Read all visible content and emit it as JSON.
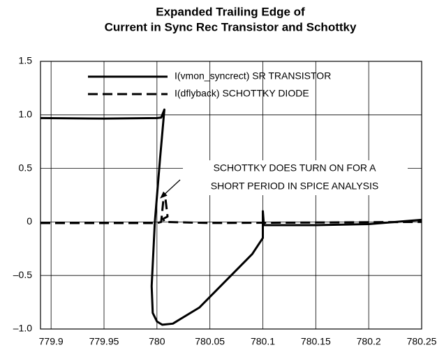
{
  "chart_data": {
    "type": "line",
    "title": [
      "Expanded Trailing Edge of",
      "Current in Sync Rec Transistor and Schottky"
    ],
    "annotation": [
      "SCHOTTKY DOES TURN ON FOR A",
      "SHORT PERIOD IN SPICE ANALYSIS"
    ],
    "xlim": [
      779.89,
      780.25
    ],
    "xticks": [
      779.9,
      779.95,
      780,
      780.05,
      780.1,
      780.15,
      780.2,
      780.25
    ],
    "ylim": [
      -1,
      1.5
    ],
    "yticks": [
      1.5,
      {
        "value": 1,
        "label": "1.0"
      },
      0.5,
      0,
      {
        "value": -0.5,
        "label": "–0.5"
      },
      {
        "value": -1,
        "label": "–1.0"
      }
    ],
    "grid": true,
    "legend": "top",
    "series": [
      {
        "name": "I(vmon_syncrect) SR TRANSISTOR",
        "color": "#000000",
        "dash": "solid",
        "x": [
          779.89,
          779.95,
          780.0,
          780.004,
          780.007,
          780.003,
          779.998,
          779.995,
          779.996,
          780.0,
          780.005,
          780.015,
          780.04,
          780.07,
          780.09,
          780.1,
          780.1,
          780.101,
          780.15,
          780.2,
          780.25
        ],
        "values": [
          0.97,
          0.965,
          0.97,
          0.975,
          1.05,
          0.6,
          0.0,
          -0.6,
          -0.85,
          -0.93,
          -0.96,
          -0.95,
          -0.8,
          -0.5,
          -0.3,
          -0.15,
          0.1,
          -0.03,
          -0.03,
          -0.02,
          0.02
        ]
      },
      {
        "name": "I(dflyback) SCHOTTKY DIODE",
        "color": "#000000",
        "dash": "dashed",
        "x": [
          779.89,
          780.0,
          780.004,
          780.006,
          780.008,
          780.01,
          780.006,
          780.007,
          780.05,
          780.25
        ],
        "values": [
          -0.01,
          -0.01,
          0.0,
          0.2,
          0.22,
          0.05,
          0.03,
          0.0,
          -0.01,
          0.0
        ]
      }
    ]
  }
}
